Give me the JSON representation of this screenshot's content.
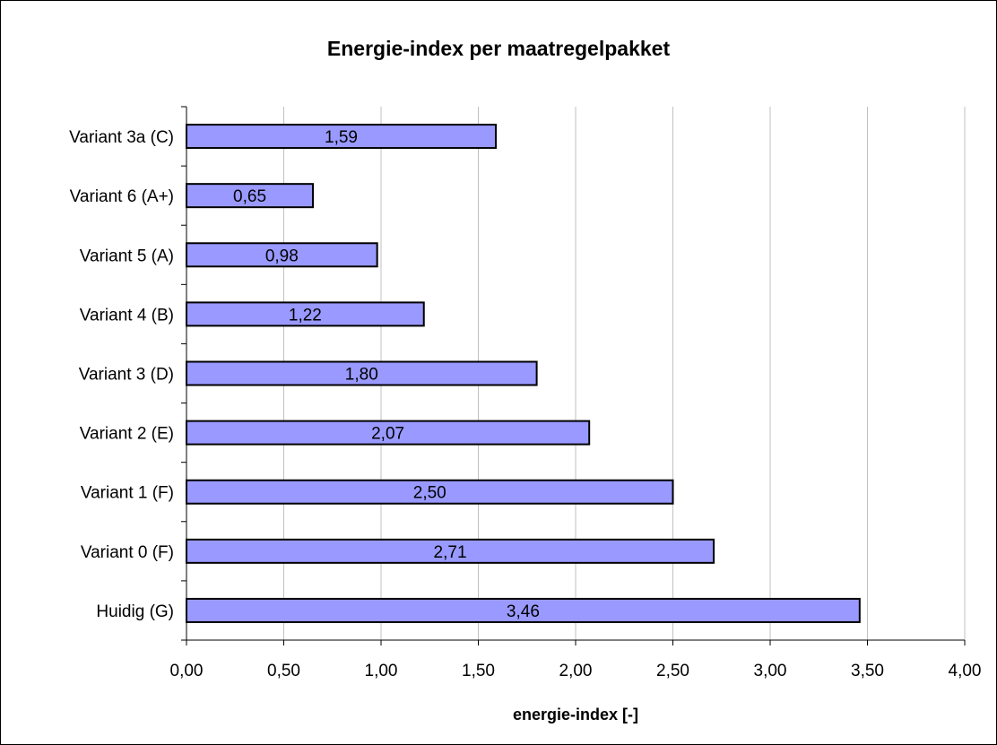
{
  "chart_data": {
    "type": "bar",
    "orientation": "horizontal",
    "title": "Energie-index per maatregelpakket",
    "xlabel": "energie-index [-]",
    "ylabel": "",
    "categories": [
      "Huidig (G)",
      "Variant 0 (F)",
      "Variant 1 (F)",
      "Variant 2 (E)",
      "Variant 3 (D)",
      "Variant 4 (B)",
      "Variant 5 (A)",
      "Variant 6 (A+)",
      "Variant 3a (C)"
    ],
    "values": [
      3.46,
      2.71,
      2.5,
      2.07,
      1.8,
      1.22,
      0.98,
      0.65,
      1.59
    ],
    "data_labels": [
      "3,46",
      "2,71",
      "2,50",
      "2,07",
      "1,80",
      "1,22",
      "0,98",
      "0,65",
      "1,59"
    ],
    "xlim": [
      0,
      4
    ],
    "x_ticks": [
      "0,00",
      "0,50",
      "1,00",
      "1,50",
      "2,00",
      "2,50",
      "3,00",
      "3,50",
      "4,00"
    ],
    "grid": "vertical",
    "legend": "none",
    "colors": {
      "bar_fill": "#9999ff",
      "bar_stroke": "#000000",
      "grid": "#c0c0c0"
    }
  }
}
